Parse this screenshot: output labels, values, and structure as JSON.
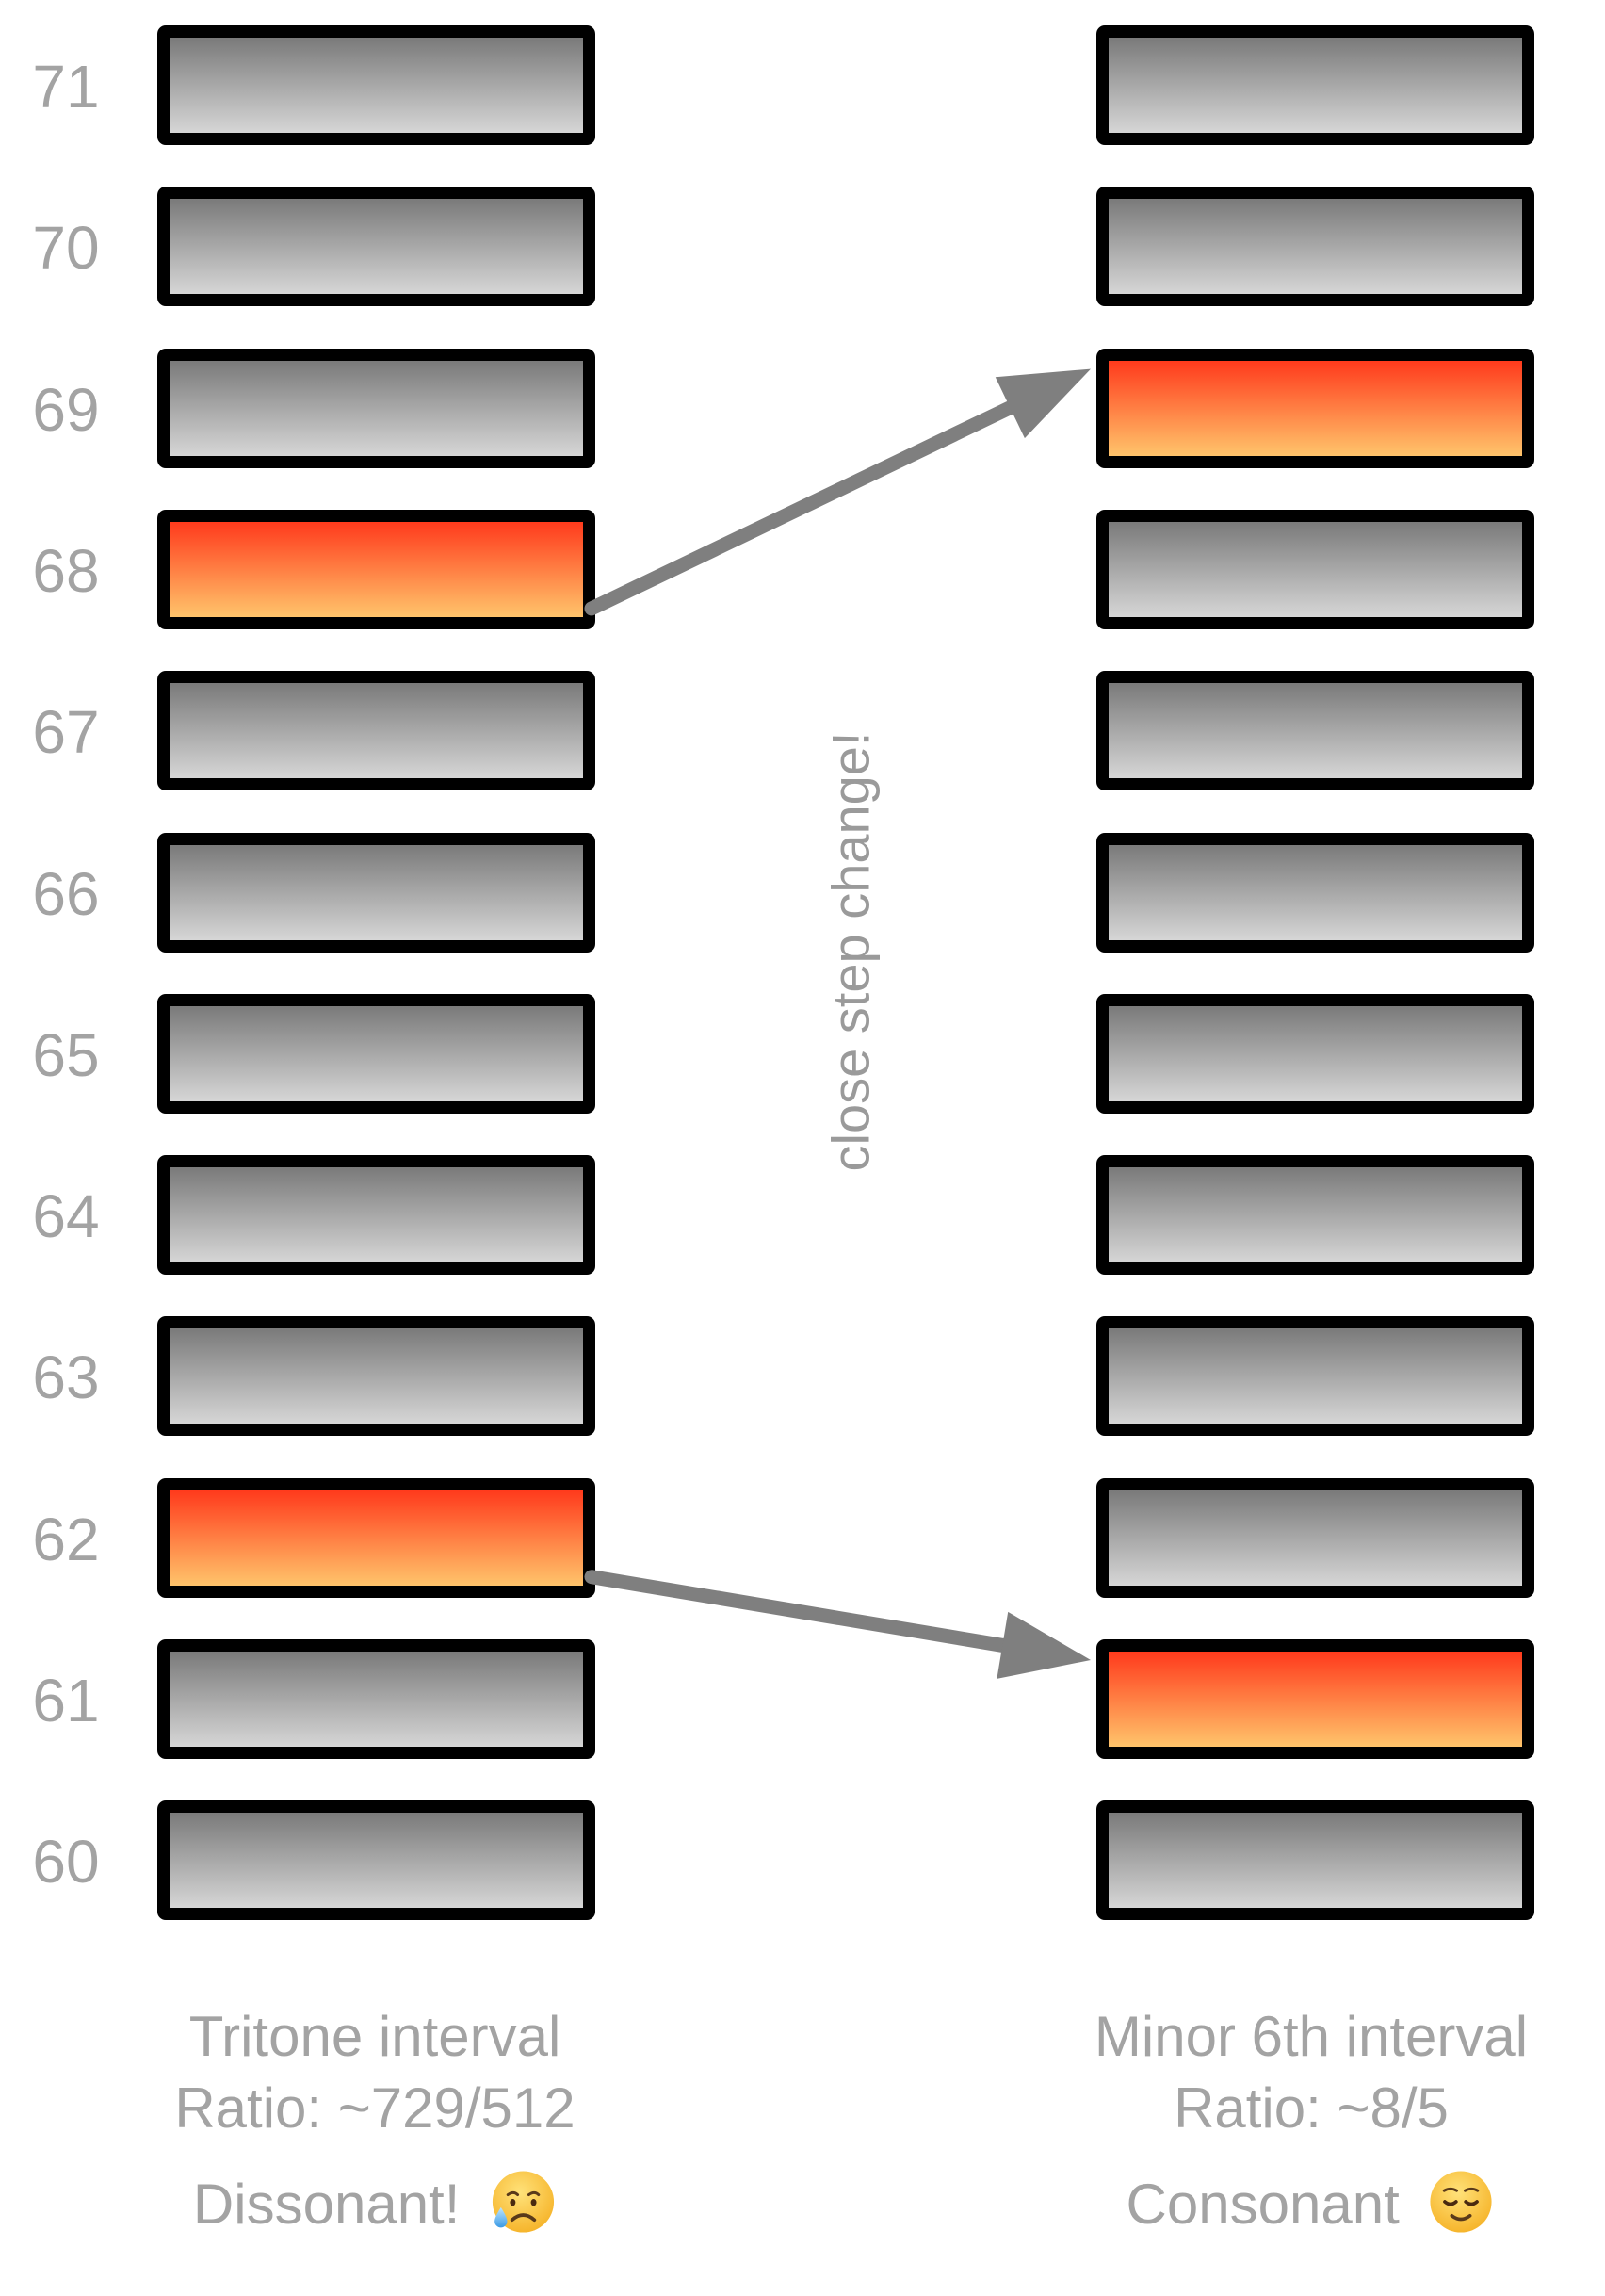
{
  "notes": [
    "71",
    "70",
    "69",
    "68",
    "67",
    "66",
    "65",
    "64",
    "63",
    "62",
    "61",
    "60"
  ],
  "left_column": {
    "highlighted": [
      "68",
      "62"
    ],
    "caption": {
      "title": "Tritone interval",
      "ratio": "Ratio: ~729/512",
      "verdict": "Dissonant!",
      "emoji_icon": "sad-sweat-face-icon"
    }
  },
  "right_column": {
    "highlighted": [
      "69",
      "61"
    ],
    "caption": {
      "title": "Minor 6th interval",
      "ratio": "Ratio: ~8/5",
      "verdict": "Consonant",
      "emoji_icon": "relieved-face-icon"
    }
  },
  "center_label": "close step change!",
  "arrows": [
    {
      "from": "68",
      "to": "69"
    },
    {
      "from": "62",
      "to": "61"
    }
  ],
  "colors": {
    "key_border": "#000000",
    "key_gray_top": "#7a7a7a",
    "key_gray_bottom": "#d6d6d6",
    "key_highlight_top": "#ff3a1c",
    "key_highlight_bottom": "#ffc46b",
    "label_text": "#a3a3a3",
    "arrow": "#7f7f7f"
  }
}
